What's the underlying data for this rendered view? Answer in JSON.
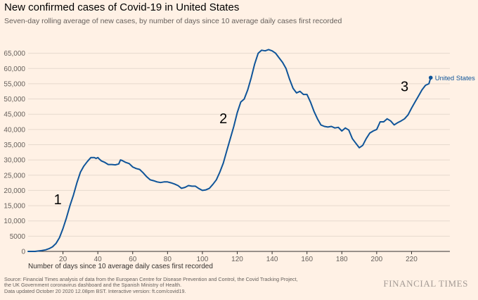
{
  "header": {
    "title": "New confirmed cases of Covid-19 in United States",
    "subtitle": "Seven-day rolling average of new cases, by number of days since 10 average daily cases first recorded"
  },
  "footer": {
    "source_line1": "Source: Financial Times analysis of data from the European Centre for Disease Prevention and Control, the Covid Tracking Project,",
    "source_line2": "the UK Government coronavirus dashboard and the Spanish Ministry of Health.",
    "source_line3": "Data updated October 20 2020 12.08pm BST. Interactive version: ft.com/covid19.",
    "brand": "FINANCIAL TIMES"
  },
  "colors": {
    "background": "#fff1e5",
    "line": "#0f5499",
    "grid": "#e6d9ce",
    "axis": "#33302e"
  },
  "chart_data": {
    "type": "line",
    "title": "New confirmed cases of Covid-19 in United States",
    "subtitle": "Seven-day rolling average of new cases, by number of days since 10 average daily cases first recorded",
    "xlabel": "Number of days since 10 average daily cases first recorded",
    "ylabel": "",
    "xlim": [
      0,
      242
    ],
    "ylim": [
      0,
      67000
    ],
    "x_ticks": [
      20,
      40,
      60,
      80,
      100,
      120,
      140,
      160,
      180,
      200,
      220
    ],
    "y_ticks": [
      0,
      5000,
      10000,
      15000,
      20000,
      25000,
      30000,
      35000,
      40000,
      45000,
      50000,
      55000,
      60000,
      65000
    ],
    "y_tick_labels": [
      "0",
      "5000",
      "10,000",
      "15,000",
      "20,000",
      "25,000",
      "30,000",
      "35,000",
      "40,000",
      "45,000",
      "50,000",
      "55,000",
      "60,000",
      "65,000"
    ],
    "grid": "horizontal",
    "annotations": [
      {
        "text": "1",
        "x": 17,
        "y": 15500
      },
      {
        "text": "2",
        "x": 112,
        "y": 42000
      },
      {
        "text": "3",
        "x": 216,
        "y": 52500
      }
    ],
    "series": [
      {
        "name": "United States",
        "end_label": "United States",
        "x": [
          0,
          4,
          8,
          10,
          12,
          14,
          16,
          18,
          20,
          22,
          24,
          26,
          28,
          30,
          32,
          34,
          36,
          38,
          39,
          40,
          41,
          42,
          44,
          46,
          48,
          50,
          52,
          53,
          54,
          56,
          58,
          60,
          62,
          64,
          66,
          68,
          70,
          72,
          74,
          76,
          78,
          80,
          82,
          84,
          86,
          88,
          90,
          92,
          94,
          96,
          98,
          100,
          102,
          104,
          106,
          108,
          110,
          112,
          114,
          116,
          118,
          120,
          122,
          124,
          126,
          128,
          130,
          132,
          134,
          136,
          138,
          140,
          142,
          144,
          146,
          148,
          150,
          152,
          154,
          156,
          158,
          160,
          162,
          164,
          166,
          168,
          170,
          172,
          174,
          176,
          178,
          180,
          182,
          184,
          186,
          188,
          190,
          192,
          194,
          196,
          198,
          200,
          202,
          204,
          206,
          208,
          210,
          212,
          214,
          216,
          218,
          220,
          222,
          224,
          226,
          228,
          230,
          231
        ],
        "values": [
          0,
          0,
          300,
          500,
          900,
          1500,
          2600,
          4500,
          7500,
          11000,
          15000,
          18500,
          22500,
          26000,
          28000,
          29500,
          30800,
          30800,
          30500,
          30800,
          30200,
          29700,
          29200,
          28500,
          28500,
          28400,
          28700,
          30000,
          29800,
          29200,
          28800,
          27700,
          27200,
          26900,
          25800,
          24500,
          23500,
          23200,
          22800,
          22600,
          22800,
          22800,
          22500,
          22100,
          21600,
          20700,
          21000,
          21600,
          21400,
          21400,
          20600,
          20000,
          20200,
          20700,
          22000,
          23500,
          26000,
          29000,
          33000,
          37000,
          41000,
          45500,
          49000,
          50000,
          53000,
          57000,
          61500,
          65000,
          66000,
          65800,
          66200,
          65800,
          65000,
          63500,
          62000,
          60000,
          56500,
          53500,
          52000,
          52500,
          51500,
          51500,
          49000,
          46000,
          43500,
          41500,
          41000,
          40800,
          41000,
          40500,
          40700,
          39500,
          40500,
          39800,
          37000,
          35500,
          34000,
          34800,
          37000,
          38800,
          39500,
          40000,
          42500,
          42500,
          43500,
          42800,
          41500,
          42200,
          42800,
          43500,
          44800,
          47000,
          49000,
          51000,
          53000,
          54500,
          55000,
          57000
        ]
      }
    ]
  }
}
